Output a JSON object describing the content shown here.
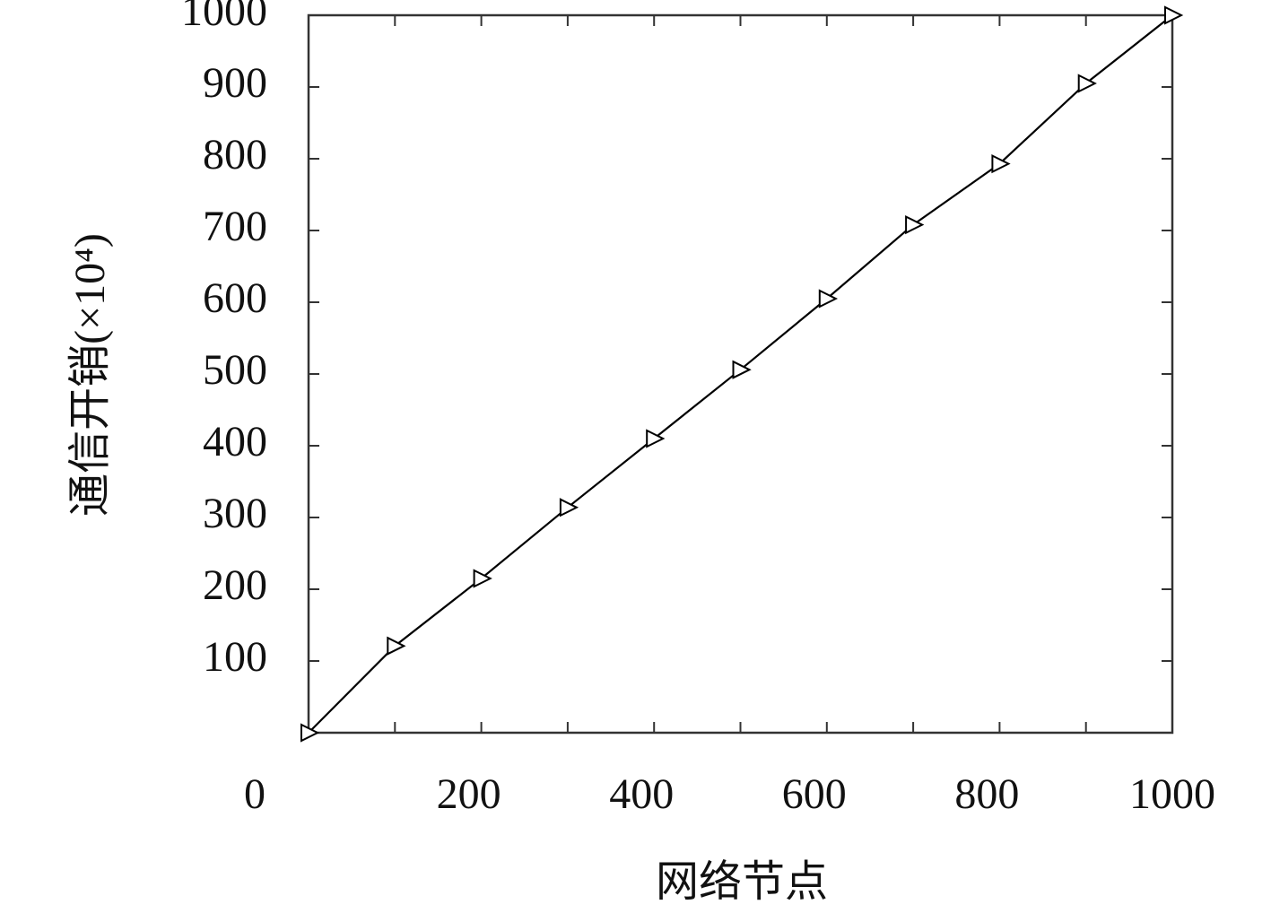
{
  "chart_data": {
    "type": "line",
    "x_label": "网络节点",
    "y_label": "通信开销(×10⁴)",
    "x": [
      0,
      100,
      200,
      300,
      400,
      500,
      600,
      700,
      800,
      900,
      1000
    ],
    "series": [
      {
        "color": "#000000",
        "marker": "triangle-right",
        "values": [
          0,
          121,
          215,
          314,
          410,
          506,
          605,
          708,
          793,
          905,
          1000
        ]
      }
    ],
    "xlim": [
      0,
      1000
    ],
    "ylim": [
      0,
      1000
    ],
    "xticks": [
      0,
      200,
      400,
      600,
      800,
      1000
    ],
    "xminorticks": [
      100,
      300,
      500,
      700,
      900
    ],
    "yticks": [
      100,
      200,
      300,
      400,
      500,
      600,
      700,
      800,
      900,
      1000
    ],
    "grid": false
  }
}
